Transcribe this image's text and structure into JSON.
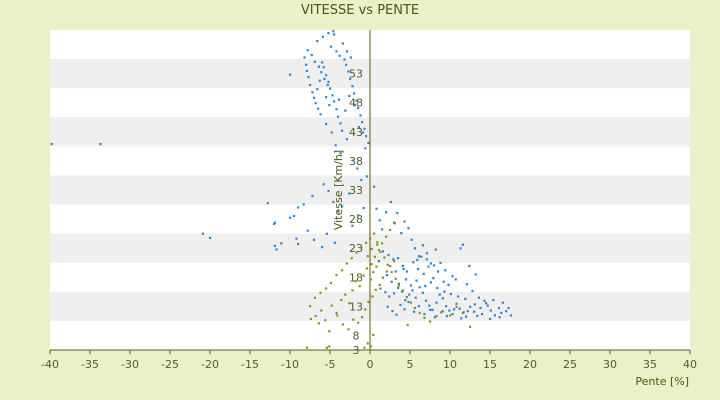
{
  "chart_data": {
    "type": "scatter",
    "title": "VITESSE vs PENTE",
    "xlabel": "Pente [%]",
    "ylabel": "Vitesse [Km/h]",
    "xlim": [
      -40,
      40
    ],
    "ylim": [
      3,
      55.5
    ],
    "x_ticks": [
      "-40",
      "-35",
      "-30",
      "-25",
      "-20",
      "-15",
      "-10",
      "-5",
      "0",
      "5",
      "10",
      "15",
      "20",
      "25",
      "30",
      "35",
      "40"
    ],
    "y_ticks": [
      "3",
      "8",
      "13",
      "18",
      "23",
      "28",
      "33",
      "38",
      "43",
      "48",
      "53"
    ],
    "grid": "horizontal alternating bands",
    "colors": {
      "background": "#ecf0c8",
      "band_light": "#ffffff",
      "band_dark": "#efefef",
      "axis": "#5a5a10",
      "series_blue": "#2e86d6",
      "series_olive": "#8f8f1e"
    },
    "series": [
      {
        "color": "#2e86d6",
        "points": [
          [
            -39.8,
            36.8
          ],
          [
            -33.7,
            36.8
          ],
          [
            -20.9,
            22.1
          ],
          [
            -20,
            21.4
          ],
          [
            -12.8,
            27.1
          ],
          [
            -12,
            23.7
          ],
          [
            -11.9,
            23.9
          ],
          [
            -11.9,
            20.1
          ],
          [
            -11.7,
            19.5
          ],
          [
            -11.1,
            20.5
          ],
          [
            -10,
            48.2
          ],
          [
            -10,
            24.7
          ],
          [
            -9.5,
            25
          ],
          [
            -9.2,
            21.3
          ],
          [
            -9,
            26.4
          ],
          [
            -9,
            20.4
          ],
          [
            -8.2,
            51
          ],
          [
            -8,
            49.8
          ],
          [
            -7.9,
            48.8
          ],
          [
            -7.7,
            47.8
          ],
          [
            -7.5,
            46.5
          ],
          [
            -7.2,
            45.3
          ],
          [
            -7,
            44.4
          ],
          [
            -6.8,
            43.5
          ],
          [
            -6.5,
            42.6
          ],
          [
            -6.2,
            41.7
          ],
          [
            -6,
            50.2
          ],
          [
            -5.8,
            49.4
          ],
          [
            -5.5,
            48.1
          ],
          [
            -5.2,
            47
          ],
          [
            -5,
            45.9
          ],
          [
            -4.7,
            44.8
          ],
          [
            -4.5,
            43.8
          ],
          [
            -4.2,
            42.5
          ],
          [
            -4,
            41.3
          ],
          [
            -3.7,
            40.2
          ],
          [
            -3.5,
            39
          ],
          [
            -3.2,
            50.7
          ],
          [
            -3,
            49.8
          ],
          [
            -2.7,
            48.7
          ],
          [
            -2.5,
            47.5
          ],
          [
            -2.2,
            46.3
          ],
          [
            -2,
            45.1
          ],
          [
            -1.7,
            43.9
          ],
          [
            -1.5,
            42.7
          ],
          [
            -1.2,
            41.5
          ],
          [
            -1,
            40.4
          ],
          [
            -0.7,
            39.3
          ],
          [
            -0.5,
            38.1
          ],
          [
            -0.2,
            37
          ],
          [
            -7.8,
            52.2
          ],
          [
            -7.3,
            51.4
          ],
          [
            -6.9,
            50.3
          ],
          [
            -6.4,
            49.5
          ],
          [
            -6.1,
            48.6
          ],
          [
            -5.7,
            47.5
          ],
          [
            -5.3,
            46.5
          ],
          [
            -4.9,
            52.8
          ],
          [
            -4.5,
            54.8
          ],
          [
            -4.2,
            52
          ],
          [
            -3.8,
            51.3
          ],
          [
            -3.4,
            53.3
          ],
          [
            -2.9,
            52
          ],
          [
            -2.4,
            51
          ],
          [
            -6.6,
            53.7
          ],
          [
            -5.9,
            54.4
          ],
          [
            -5.2,
            55
          ],
          [
            -4.6,
            55.3
          ],
          [
            -6.3,
            47.2
          ],
          [
            -6.6,
            45.8
          ],
          [
            -5.5,
            44.5
          ],
          [
            -5.1,
            43.2
          ],
          [
            -3.9,
            44.1
          ],
          [
            -3.1,
            42.3
          ],
          [
            -2.6,
            44.7
          ],
          [
            -1.9,
            43.2
          ],
          [
            -1.4,
            39.6
          ],
          [
            -0.9,
            38.7
          ],
          [
            -0.6,
            36.1
          ],
          [
            -5.5,
            40.1
          ],
          [
            -4.8,
            38.7
          ],
          [
            -4.3,
            36.6
          ],
          [
            -3.7,
            35.3
          ],
          [
            -2.9,
            37.6
          ],
          [
            -2.1,
            34.1
          ],
          [
            -1.6,
            32.8
          ],
          [
            -1.1,
            30.9
          ],
          [
            -0.4,
            31.5
          ],
          [
            -5.8,
            30.2
          ],
          [
            -5.2,
            29.1
          ],
          [
            -4.6,
            27.3
          ],
          [
            -4,
            25.8
          ],
          [
            -3.5,
            26.6
          ],
          [
            -2.6,
            28.7
          ],
          [
            -2.2,
            23.4
          ],
          [
            -1.5,
            25.1
          ],
          [
            -0.8,
            26.3
          ],
          [
            -7.2,
            28.3
          ],
          [
            -8.3,
            26.9
          ],
          [
            -7.8,
            22.6
          ],
          [
            -7,
            21.1
          ],
          [
            -6,
            19.9
          ],
          [
            -5.4,
            22.1
          ],
          [
            -4.4,
            20.6
          ],
          [
            0.5,
            29.8
          ],
          [
            0.8,
            26.2
          ],
          [
            1.2,
            24.3
          ],
          [
            1.5,
            22.8
          ],
          [
            2,
            25.6
          ],
          [
            2.6,
            27.3
          ],
          [
            3,
            23.9
          ],
          [
            3.4,
            25.5
          ],
          [
            3.9,
            22.2
          ],
          [
            4.3,
            24.1
          ],
          [
            4.8,
            23
          ],
          [
            5.2,
            21.1
          ],
          [
            5.6,
            19.7
          ],
          [
            6.1,
            18.4
          ],
          [
            6.6,
            20.2
          ],
          [
            7.1,
            18.9
          ],
          [
            7.6,
            17.2
          ],
          [
            8.2,
            19.5
          ],
          [
            8.8,
            17.3
          ],
          [
            11.3,
            19.7
          ],
          [
            11.6,
            20.3
          ],
          [
            12.4,
            16.8
          ],
          [
            13.2,
            15.4
          ],
          [
            1.1,
            17.6
          ],
          [
            1.6,
            19.2
          ],
          [
            2.3,
            18.6
          ],
          [
            2.9,
            17.9
          ],
          [
            3.5,
            18.1
          ],
          [
            4.1,
            16.8
          ],
          [
            4.6,
            15.9
          ],
          [
            5.4,
            17.4
          ],
          [
            6,
            16.3
          ],
          [
            6.7,
            15.5
          ],
          [
            7.3,
            16.7
          ],
          [
            7.9,
            14.8
          ],
          [
            8.5,
            15.9
          ],
          [
            9.2,
            14.2
          ],
          [
            9.8,
            13.7
          ],
          [
            10.3,
            15.1
          ],
          [
            1.3,
            13.1
          ],
          [
            1.9,
            12.5
          ],
          [
            2.4,
            11.8
          ],
          [
            3,
            12.3
          ],
          [
            3.5,
            13.2
          ],
          [
            4,
            12.6
          ],
          [
            4.4,
            11.2
          ],
          [
            4.9,
            12.1
          ],
          [
            5.3,
            12.8
          ],
          [
            5.7,
            11.6
          ],
          [
            6.2,
            13.3
          ],
          [
            6.6,
            12.4
          ],
          [
            7,
            11.1
          ],
          [
            7.4,
            10.3
          ],
          [
            7.8,
            9.6
          ],
          [
            8.3,
            10.8
          ],
          [
            8.7,
            12.1
          ],
          [
            9.1,
            11.5
          ],
          [
            9.5,
            10.2
          ],
          [
            9.9,
            9.5
          ],
          [
            10.3,
            8.9
          ],
          [
            10.8,
            10.6
          ],
          [
            11.2,
            9.8
          ],
          [
            11.6,
            9.1
          ],
          [
            12,
            8.5
          ],
          [
            12.5,
            10.1
          ],
          [
            13,
            9.3
          ],
          [
            13.4,
            8.6
          ],
          [
            13.8,
            9.9
          ],
          [
            14.3,
            11.1
          ],
          [
            14.7,
            10.3
          ],
          [
            15.1,
            9.5
          ],
          [
            15.6,
            8.7
          ],
          [
            16.1,
            9.9
          ],
          [
            16.6,
            10.8
          ],
          [
            17,
            9.4
          ],
          [
            17.6,
            8.7
          ],
          [
            2.2,
            10.1
          ],
          [
            2.8,
            9.4
          ],
          [
            3.3,
            8.8
          ],
          [
            3.8,
            10.4
          ],
          [
            4.3,
            9.7
          ],
          [
            4.8,
            10.9
          ],
          [
            5.5,
            9.3
          ],
          [
            6.1,
            10.2
          ],
          [
            6.8,
            8.9
          ],
          [
            7.5,
            9.6
          ],
          [
            8.1,
            8.4
          ],
          [
            8.9,
            9.2
          ],
          [
            9.6,
            8.6
          ],
          [
            10.5,
            9.7
          ],
          [
            11.4,
            8.2
          ],
          [
            12.2,
            9.4
          ],
          [
            13.1,
            10.5
          ],
          [
            14,
            8.9
          ],
          [
            15,
            8.1
          ],
          [
            16.2,
            8.4
          ],
          [
            2.7,
            14.2
          ],
          [
            3.6,
            13.9
          ],
          [
            4.5,
            14.6
          ],
          [
            5.1,
            13.6
          ],
          [
            5.8,
            14.4
          ],
          [
            6.9,
            13.5
          ],
          [
            7.6,
            14.1
          ],
          [
            8.4,
            13.2
          ],
          [
            9.3,
            12.6
          ],
          [
            10.1,
            12.2
          ],
          [
            11,
            11.8
          ],
          [
            11.9,
            11.4
          ],
          [
            12.8,
            12.7
          ],
          [
            13.6,
            11.6
          ],
          [
            14.5,
            10.7
          ],
          [
            15.4,
            11.2
          ],
          [
            16.4,
            9.1
          ],
          [
            17.3,
            9.9
          ],
          [
            2.1,
            15.3
          ],
          [
            3.2,
            15.9
          ],
          [
            4.2,
            16.3
          ],
          [
            5.9,
            17.8
          ],
          [
            6.4,
            18.3
          ],
          [
            7.1,
            17.9
          ],
          [
            8,
            16.9
          ],
          [
            9.4,
            16.1
          ],
          [
            10.7,
            14.6
          ],
          [
            12.1,
            13.8
          ]
        ]
      },
      {
        "color": "#8f8f1e",
        "points": [
          [
            -7.9,
            3.4
          ],
          [
            -5.4,
            3.4
          ],
          [
            -5.1,
            3.6
          ],
          [
            -0.7,
            3.4
          ],
          [
            -0.3,
            4.1
          ],
          [
            0.1,
            3.6
          ],
          [
            0.4,
            5.5
          ],
          [
            -7.4,
            8.1
          ],
          [
            -6.8,
            8.6
          ],
          [
            -6.1,
            9.5
          ],
          [
            -5.6,
            7.9
          ],
          [
            -4.8,
            10.3
          ],
          [
            -4.2,
            9.1
          ],
          [
            -3.6,
            11.2
          ],
          [
            -3.1,
            12.1
          ],
          [
            -2.6,
            10.7
          ],
          [
            -2.2,
            12.8
          ],
          [
            -1.8,
            14.3
          ],
          [
            -1.3,
            13.5
          ],
          [
            -0.8,
            15.2
          ],
          [
            -0.4,
            16.4
          ],
          [
            0.2,
            17.1
          ],
          [
            0.6,
            18.3
          ],
          [
            1.1,
            19.4
          ],
          [
            1.5,
            20.5
          ],
          [
            2,
            21.6
          ],
          [
            2.5,
            22.7
          ],
          [
            3.1,
            23.8
          ],
          [
            -7.5,
            10.2
          ],
          [
            -6.9,
            11.6
          ],
          [
            -6.2,
            12.4
          ],
          [
            -5.5,
            13.1
          ],
          [
            -4.9,
            14
          ],
          [
            -4.2,
            15.3
          ],
          [
            -3.5,
            16.1
          ],
          [
            -2.9,
            17.2
          ],
          [
            -2.3,
            18.1
          ],
          [
            -1.7,
            19
          ],
          [
            -1.1,
            19.8
          ],
          [
            -0.5,
            20.6
          ],
          [
            0,
            21.3
          ],
          [
            0.5,
            22.1
          ],
          [
            0.9,
            20.3
          ],
          [
            1.3,
            19.1
          ],
          [
            1.8,
            18.2
          ],
          [
            2.2,
            17
          ],
          [
            2.7,
            15.8
          ],
          [
            3.2,
            14.7
          ],
          [
            3.6,
            13.6
          ],
          [
            4.1,
            12.8
          ],
          [
            4.6,
            11.7
          ],
          [
            5.1,
            10.8
          ],
          [
            5.6,
            9.9
          ],
          [
            6.2,
            9.1
          ],
          [
            6.8,
            8.3
          ],
          [
            7.5,
            7.7
          ],
          [
            8.3,
            8.6
          ],
          [
            9.1,
            9.4
          ],
          [
            10,
            8.7
          ],
          [
            10.8,
            10.1
          ],
          [
            11.7,
            9.2
          ],
          [
            12.5,
            6.8
          ],
          [
            4.7,
            7.1
          ],
          [
            -1.5,
            7.5
          ],
          [
            -1,
            8.4
          ],
          [
            -0.6,
            9.7
          ],
          [
            -0.2,
            10.9
          ],
          [
            0.3,
            11.8
          ],
          [
            0.7,
            12.9
          ],
          [
            1.2,
            13.7
          ],
          [
            1.6,
            14.9
          ],
          [
            2.1,
            15.9
          ],
          [
            2.5,
            16.8
          ],
          [
            3,
            17.6
          ],
          [
            0.1,
            14.6
          ],
          [
            0.4,
            15.8
          ],
          [
            0.8,
            16.7
          ],
          [
            -0.3,
            18.4
          ],
          [
            0.2,
            19.6
          ],
          [
            0.9,
            20.7
          ],
          [
            -2.7,
            6.4
          ],
          [
            -2.1,
            8
          ],
          [
            -3.4,
            7.2
          ],
          [
            -4.1,
            8.7
          ],
          [
            -5.1,
            6.1
          ],
          [
            -6.4,
            7.4
          ]
        ]
      }
    ]
  }
}
